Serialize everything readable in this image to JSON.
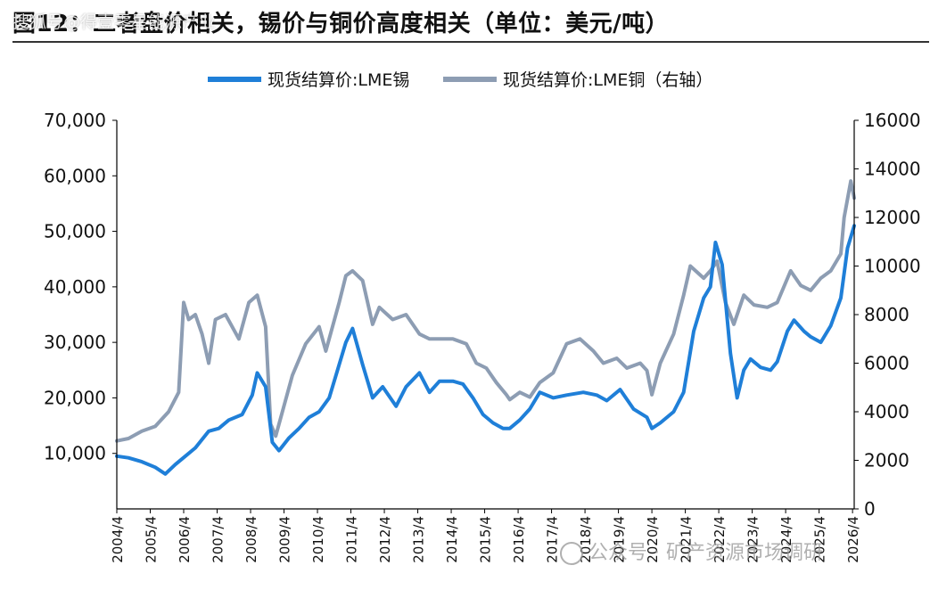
{
  "title": "图12：二者盘价相关，锡价与铜价高度相关（单位：美元/吨）",
  "watermark_top": "搜狐号@得壹零星能源产业",
  "watermark_bottom": "公众号 · 矿产资源市场调研",
  "colors": {
    "tin": "#1f7fd8",
    "copper": "#8d9db3",
    "axis": "#000000"
  },
  "chart_data": {
    "type": "line",
    "legend_position": "top-center",
    "grid": false,
    "x_tick_labels": [
      "2004/4",
      "2005/4",
      "2006/4",
      "2007/4",
      "2008/4",
      "2009/4",
      "2010/4",
      "2011/4",
      "2012/4",
      "2013/4",
      "2014/4",
      "2015/4",
      "2016/4",
      "2017/4",
      "2018/4",
      "2019/4",
      "2020/4",
      "2021/4",
      "2022/4",
      "2023/4",
      "2024/4",
      "2025/4",
      "2026/4"
    ],
    "xlim": [
      2004.25,
      2026.3
    ],
    "y_left": {
      "ticks": [
        "10,000",
        "20,000",
        "30,000",
        "40,000",
        "50,000",
        "60,000",
        "70,000"
      ],
      "ylim": [
        0,
        70000
      ]
    },
    "y_right": {
      "ticks": [
        "0",
        "2000",
        "4000",
        "6000",
        "8000",
        "10000",
        "12000",
        "14000",
        "16000"
      ],
      "ylim": [
        0,
        16000
      ]
    },
    "series": [
      {
        "name": "现货结算价:LME锡",
        "axis": "left",
        "x": [
          2004.25,
          2004.6,
          2005.0,
          2005.4,
          2005.7,
          2006.0,
          2006.3,
          2006.6,
          2007.0,
          2007.3,
          2007.6,
          2008.0,
          2008.3,
          2008.45,
          2008.7,
          2008.9,
          2009.1,
          2009.4,
          2009.7,
          2010.0,
          2010.3,
          2010.6,
          2010.9,
          2011.1,
          2011.3,
          2011.6,
          2011.9,
          2012.2,
          2012.6,
          2012.9,
          2013.3,
          2013.6,
          2013.9,
          2014.3,
          2014.6,
          2014.9,
          2015.2,
          2015.5,
          2015.8,
          2016.0,
          2016.3,
          2016.6,
          2016.9,
          2017.3,
          2017.7,
          2018.2,
          2018.6,
          2018.9,
          2019.3,
          2019.7,
          2020.1,
          2020.25,
          2020.5,
          2020.9,
          2021.2,
          2021.5,
          2021.8,
          2022.0,
          2022.15,
          2022.35,
          2022.6,
          2022.8,
          2023.0,
          2023.2,
          2023.5,
          2023.8,
          2024.0,
          2024.3,
          2024.5,
          2024.8,
          2025.0,
          2025.3,
          2025.6,
          2025.9,
          2026.1,
          2026.3
        ],
        "y": [
          9500,
          9200,
          8500,
          7500,
          6300,
          8000,
          9500,
          11000,
          14000,
          14500,
          16000,
          17000,
          20500,
          24500,
          22000,
          12000,
          10500,
          12800,
          14500,
          16500,
          17500,
          20000,
          26000,
          30000,
          32500,
          26000,
          20000,
          22000,
          18500,
          22000,
          24500,
          21000,
          23000,
          23000,
          22500,
          20000,
          17000,
          15500,
          14500,
          14500,
          16000,
          18000,
          21000,
          20000,
          20500,
          21000,
          20500,
          19500,
          21500,
          18000,
          16500,
          14500,
          15500,
          17500,
          21000,
          32000,
          38000,
          40000,
          48000,
          44000,
          28000,
          20000,
          25000,
          27000,
          25500,
          25000,
          26500,
          32000,
          34000,
          32000,
          31000,
          30000,
          33000,
          38000,
          47000,
          51000
        ]
      },
      {
        "name": "现货结算价:LME铜（右轴）",
        "axis": "right",
        "x": [
          2004.25,
          2004.6,
          2005.0,
          2005.4,
          2005.8,
          2006.1,
          2006.25,
          2006.4,
          2006.6,
          2006.8,
          2007.0,
          2007.2,
          2007.5,
          2007.9,
          2008.2,
          2008.45,
          2008.7,
          2008.85,
          2009.0,
          2009.2,
          2009.5,
          2009.9,
          2010.3,
          2010.5,
          2010.9,
          2011.1,
          2011.3,
          2011.6,
          2011.9,
          2012.1,
          2012.5,
          2012.9,
          2013.3,
          2013.6,
          2013.9,
          2014.3,
          2014.7,
          2015.0,
          2015.3,
          2015.6,
          2015.9,
          2016.0,
          2016.3,
          2016.6,
          2016.9,
          2017.3,
          2017.7,
          2018.1,
          2018.5,
          2018.8,
          2019.2,
          2019.5,
          2019.9,
          2020.1,
          2020.25,
          2020.5,
          2020.9,
          2021.2,
          2021.4,
          2021.8,
          2022.0,
          2022.2,
          2022.45,
          2022.7,
          2023.0,
          2023.3,
          2023.7,
          2024.0,
          2024.4,
          2024.7,
          2025.0,
          2025.3,
          2025.6,
          2025.9,
          2026.0,
          2026.2,
          2026.3
        ],
        "y": [
          2800,
          2900,
          3200,
          3400,
          4000,
          4800,
          8500,
          7800,
          8000,
          7200,
          6000,
          7800,
          8000,
          7000,
          8500,
          8800,
          7500,
          3500,
          3000,
          4000,
          5500,
          6800,
          7500,
          6500,
          8500,
          9600,
          9800,
          9400,
          7600,
          8300,
          7800,
          8000,
          7200,
          7000,
          7000,
          7000,
          6800,
          6000,
          5800,
          5200,
          4700,
          4500,
          4800,
          4600,
          5200,
          5600,
          6800,
          7000,
          6500,
          6000,
          6200,
          5800,
          6000,
          5700,
          4700,
          6000,
          7200,
          8800,
          10000,
          9500,
          9800,
          10200,
          8500,
          7600,
          8800,
          8400,
          8300,
          8500,
          9800,
          9200,
          9000,
          9500,
          9800,
          10500,
          12000,
          13500,
          12800
        ]
      }
    ]
  }
}
